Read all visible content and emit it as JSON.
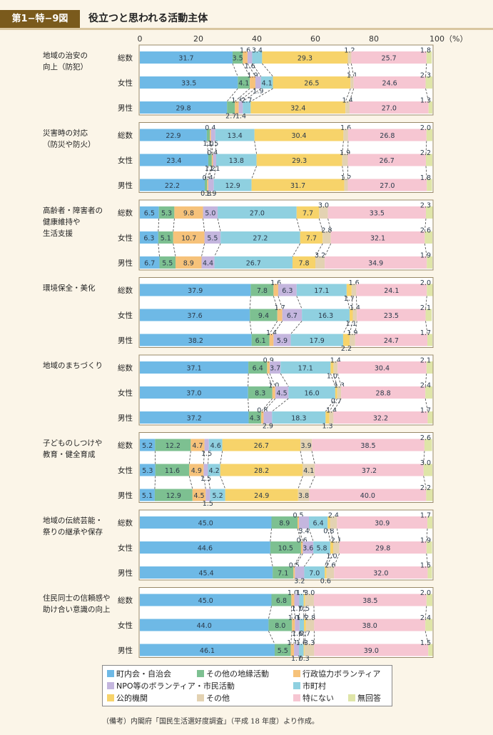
{
  "figure": {
    "id": "第1−特−9図",
    "title": "役立つと思われる活動主体",
    "note": "（備考）内閣府「国民生活選好度調査」（平成 18 年度）より作成。"
  },
  "chart_data": {
    "type": "bar",
    "orientation": "horizontal-stacked-100",
    "xlim": [
      0,
      100
    ],
    "x_ticks": [
      "0",
      "20",
      "40",
      "60",
      "80",
      "100（%）"
    ],
    "series_names": [
      "町内会・自治会",
      "その他の地縁活動",
      "行政協力ボランティア",
      "NPO等のボランティア・市民活動",
      "市町村",
      "公的機関",
      "その他",
      "特にない",
      "無回答"
    ],
    "colors": [
      "#6eb9e6",
      "#7dc091",
      "#f6c27a",
      "#c4b6de",
      "#8fd0e0",
      "#f7d36a",
      "#e3d2b2",
      "#f6c6d2",
      "#dfe5a8"
    ],
    "groups": [
      {
        "label": [
          "地域の治安の",
          "向上（防犯）"
        ],
        "rows": [
          {
            "label": "総数",
            "values": [
              31.7,
              3.5,
              1.6,
              1.6,
              3.4,
              29.3,
              1.2,
              25.7,
              1.8
            ]
          },
          {
            "label": "女性",
            "values": [
              33.5,
              4.1,
              1.9,
              1.9,
              4.1,
              26.5,
              1.1,
              24.6,
              2.3
            ]
          },
          {
            "label": "男性",
            "values": [
              29.8,
              2.7,
              1.3,
              1.4,
              2.7,
              32.4,
              1.4,
              27.0,
              1.3
            ]
          }
        ]
      },
      {
        "label": [
          "災害時の対応",
          "（防災や防火）"
        ],
        "rows": [
          {
            "label": "総数",
            "values": [
              22.9,
              1.0,
              0.4,
              1.5,
              13.4,
              30.4,
              1.6,
              26.8,
              2.0
            ]
          },
          {
            "label": "女性",
            "values": [
              23.4,
              1.2,
              0.4,
              1.1,
              13.8,
              29.3,
              1.9,
              26.7,
              2.2
            ]
          },
          {
            "label": "男性",
            "values": [
              22.2,
              0.8,
              0.4,
              1.9,
              12.9,
              31.7,
              1.2,
              27.0,
              1.8
            ]
          }
        ]
      },
      {
        "label": [
          "高齢者・障害者の",
          "健康維持や",
          "生活支援"
        ],
        "rows": [
          {
            "label": "総数",
            "values": [
              6.5,
              5.3,
              9.8,
              5.0,
              27.0,
              7.7,
              3.0,
              33.5,
              2.3
            ]
          },
          {
            "label": "女性",
            "values": [
              6.3,
              5.1,
              10.7,
              5.5,
              27.2,
              7.7,
              2.8,
              32.1,
              2.6
            ]
          },
          {
            "label": "男性",
            "values": [
              6.7,
              5.5,
              8.9,
              4.4,
              26.7,
              7.8,
              3.2,
              34.9,
              1.9
            ]
          }
        ]
      },
      {
        "label": [
          "環境保全・美化"
        ],
        "rows": [
          {
            "label": "総数",
            "values": [
              37.9,
              7.8,
              1.6,
              6.3,
              17.1,
              1.7,
              1.6,
              24.1,
              2.0
            ]
          },
          {
            "label": "女性",
            "values": [
              37.6,
              9.4,
              1.7,
              6.7,
              16.3,
              1.1,
              1.4,
              23.5,
              2.1
            ]
          },
          {
            "label": "男性",
            "values": [
              38.2,
              6.1,
              1.4,
              5.9,
              17.9,
              2.2,
              1.9,
              24.7,
              1.7
            ]
          }
        ]
      },
      {
        "label": [
          "地域のまちづくり"
        ],
        "rows": [
          {
            "label": "総数",
            "values": [
              37.1,
              6.4,
              0.9,
              3.7,
              17.1,
              1.0,
              1.4,
              30.4,
              2.1
            ]
          },
          {
            "label": "女性",
            "values": [
              37.0,
              8.3,
              1.0,
              4.5,
              16.0,
              0.7,
              1.3,
              28.8,
              2.4
            ]
          },
          {
            "label": "男性",
            "values": [
              37.2,
              4.3,
              0.8,
              2.9,
              18.3,
              1.3,
              1.4,
              32.2,
              1.7
            ]
          }
        ]
      },
      {
        "label": [
          "子どものしつけや",
          "教育・健全育成"
        ],
        "rows": [
          {
            "label": "総数",
            "values": [
              5.2,
              12.2,
              4.7,
              1.5,
              4.6,
              26.7,
              3.9,
              38.5,
              2.6
            ]
          },
          {
            "label": "女性",
            "values": [
              5.3,
              11.6,
              4.9,
              1.5,
              4.2,
              28.2,
              4.1,
              37.2,
              3.0
            ]
          },
          {
            "label": "男性",
            "values": [
              5.1,
              12.9,
              4.5,
              1.5,
              5.2,
              24.9,
              3.8,
              40.0,
              2.2
            ]
          }
        ]
      },
      {
        "label": [
          "地域の伝統芸能・",
          "祭りの継承や保存"
        ],
        "rows": [
          {
            "label": "総数",
            "values": [
              45.0,
              8.9,
              0.5,
              3.4,
              6.4,
              0.8,
              2.4,
              30.9,
              1.7
            ]
          },
          {
            "label": "女性",
            "values": [
              44.6,
              10.5,
              0.6,
              3.6,
              5.8,
              1.0,
              2.1,
              29.8,
              1.9
            ]
          },
          {
            "label": "男性",
            "values": [
              45.4,
              7.1,
              0.5,
              3.2,
              7.0,
              0.6,
              2.6,
              32.0,
              1.5
            ]
          }
        ]
      },
      {
        "label": [
          "住民同士の信頼感や",
          "助け合い意識の向上"
        ],
        "rows": [
          {
            "label": "総数",
            "values": [
              45.0,
              6.8,
              1.0,
              1.7,
              1.5,
              0.5,
              3.0,
              38.5,
              2.0
            ]
          },
          {
            "label": "女性",
            "values": [
              44.0,
              8.0,
              1.0,
              1.6,
              1.5,
              0.7,
              2.8,
              38.0,
              2.4
            ]
          },
          {
            "label": "男性",
            "values": [
              46.1,
              5.5,
              1.1,
              1.7,
              1.6,
              0.3,
              3.3,
              39.0,
              1.5
            ]
          }
        ]
      }
    ]
  },
  "legend": [
    {
      "label": "町内会・自治会",
      "color": "#6eb9e6"
    },
    {
      "label": "その他の地縁活動",
      "color": "#7dc091"
    },
    {
      "label": "行政協力ボランティア",
      "color": "#f6c27a"
    },
    {
      "label": "NPO等のボランティア・市民活動",
      "color": "#c4b6de"
    },
    {
      "label": "市町村",
      "color": "#8fd0e0"
    },
    {
      "label": "公的機関",
      "color": "#f7d36a"
    },
    {
      "label": "その他",
      "color": "#e3d2b2"
    },
    {
      "label": "特にない",
      "color": "#f6c6d2"
    },
    {
      "label": "無回答",
      "color": "#dfe5a8"
    }
  ]
}
